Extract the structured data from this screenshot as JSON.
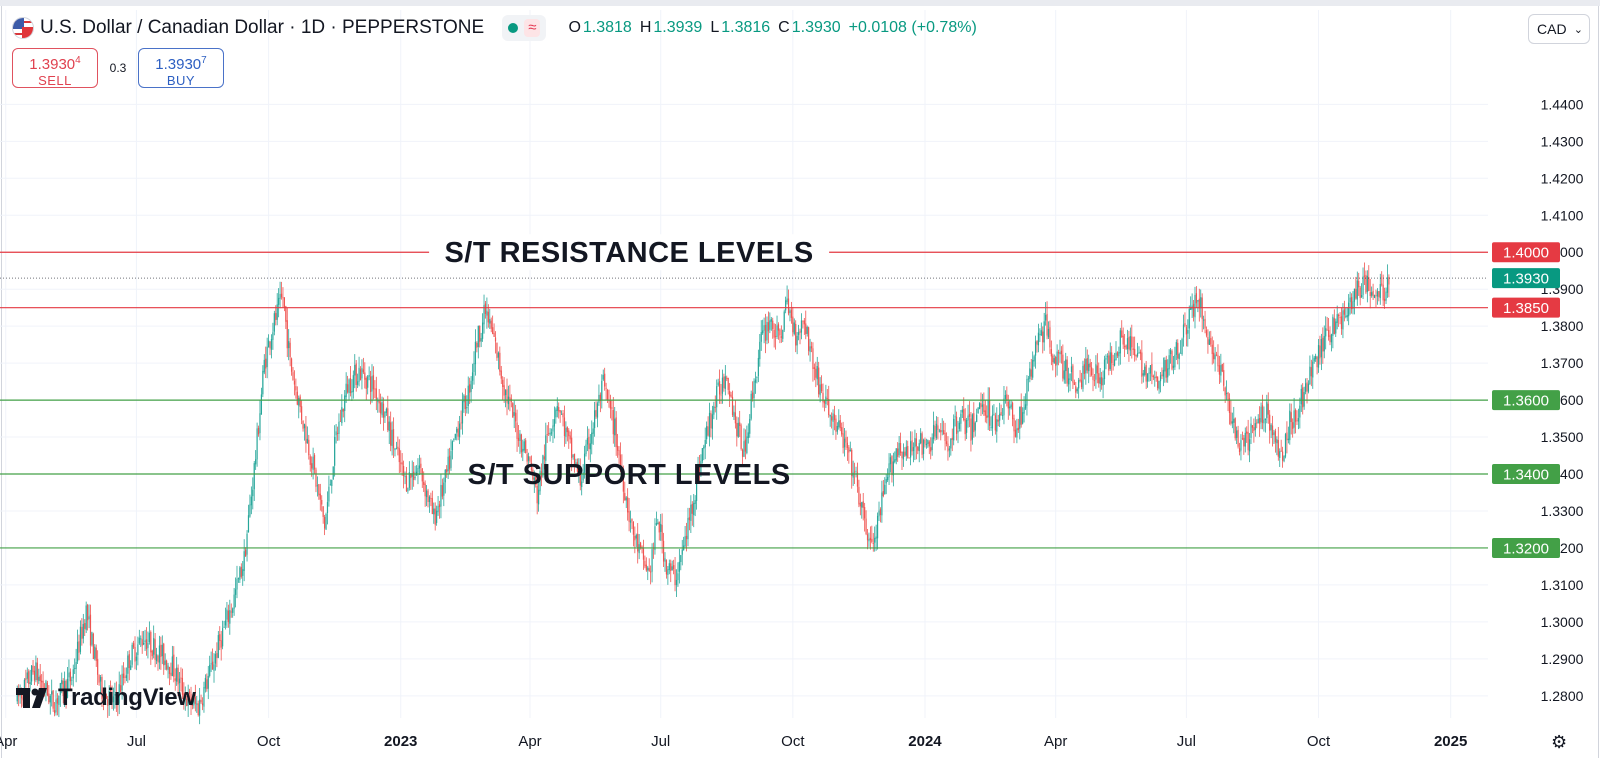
{
  "header": {
    "symbol_title": "U.S. Dollar / Canadian Dollar · 1D · PEPPERSTONE",
    "status_wave": "≈",
    "ohlc": [
      {
        "key": "O",
        "value": "1.3818"
      },
      {
        "key": "H",
        "value": "1.3939"
      },
      {
        "key": "L",
        "value": "1.3816"
      },
      {
        "key": "C",
        "value": "1.3930"
      }
    ],
    "change": "+0.0108 (+0.78%)",
    "icons": {
      "flag": "usd-cad-flag-icon",
      "status": "market-open-dot-icon"
    }
  },
  "trade": {
    "sell_price_main": "1.3930",
    "sell_price_tail": "4",
    "sell_label": "SELL",
    "spread": "0.3",
    "buy_price_main": "1.3930",
    "buy_price_tail": "7",
    "buy_label": "BUY"
  },
  "currency": {
    "value": "CAD",
    "chevron": "⌄"
  },
  "branding": {
    "name": "TradingView"
  },
  "settings_icon": "⚙",
  "colors": {
    "up": "#26a69a",
    "down": "#ef5350",
    "resistance": "#e53a43",
    "support": "#43a047",
    "last_price": "#089981"
  },
  "chart_data": {
    "type": "candlestick",
    "title": "U.S. Dollar / Canadian Dollar · 1D · PEPPERSTONE",
    "ylim": [
      1.274,
      1.452
    ],
    "y_ticks": [
      "1.4400",
      "1.4300",
      "1.4200",
      "1.4100",
      "1.4000",
      "1.3900",
      "1.3800",
      "1.3700",
      "1.3600",
      "1.3500",
      "1.3400",
      "1.3300",
      "1.3200",
      "1.3100",
      "1.3000",
      "1.2900",
      "1.2800"
    ],
    "x_ticks": [
      {
        "label": "Apr",
        "bold": false,
        "day": -8
      },
      {
        "label": "Jul",
        "bold": false,
        "day": 83
      },
      {
        "label": "Oct",
        "bold": false,
        "day": 175
      },
      {
        "label": "2023",
        "bold": true,
        "day": 267
      },
      {
        "label": "Apr",
        "bold": false,
        "day": 357
      },
      {
        "label": "Jul",
        "bold": false,
        "day": 448
      },
      {
        "label": "Oct",
        "bold": false,
        "day": 540
      },
      {
        "label": "2024",
        "bold": true,
        "day": 632
      },
      {
        "label": "Apr",
        "bold": false,
        "day": 723
      },
      {
        "label": "Jul",
        "bold": false,
        "day": 814
      },
      {
        "label": "Oct",
        "bold": false,
        "day": 906
      },
      {
        "label": "2025",
        "bold": true,
        "day": 998
      }
    ],
    "last_day": 955,
    "levels": [
      {
        "name": "resistance",
        "value": 1.4,
        "label": "1.4000",
        "kind": "resistance"
      },
      {
        "name": "resistance",
        "value": 1.385,
        "label": "1.3850",
        "kind": "resistance"
      },
      {
        "name": "last-price",
        "value": 1.393,
        "label": "1.3930",
        "kind": "last"
      },
      {
        "name": "support",
        "value": 1.36,
        "label": "1.3600",
        "kind": "support"
      },
      {
        "name": "support",
        "value": 1.34,
        "label": "1.3400",
        "kind": "support"
      },
      {
        "name": "support",
        "value": 1.32,
        "label": "1.3200",
        "kind": "support"
      }
    ],
    "annotations": [
      {
        "text": "S/T RESISTANCE LEVELS",
        "price": 1.4,
        "day": 426
      },
      {
        "text": "S/T SUPPORT LEVELS",
        "price": 1.34,
        "day": 426
      }
    ],
    "path_points": [
      [
        0,
        1.279
      ],
      [
        12,
        1.287
      ],
      [
        25,
        1.278
      ],
      [
        38,
        1.285
      ],
      [
        48,
        1.303
      ],
      [
        58,
        1.282
      ],
      [
        68,
        1.278
      ],
      [
        78,
        1.29
      ],
      [
        88,
        1.296
      ],
      [
        98,
        1.292
      ],
      [
        108,
        1.288
      ],
      [
        118,
        1.279
      ],
      [
        126,
        1.277
      ],
      [
        134,
        1.286
      ],
      [
        142,
        1.296
      ],
      [
        150,
        1.305
      ],
      [
        158,
        1.317
      ],
      [
        166,
        1.345
      ],
      [
        172,
        1.37
      ],
      [
        178,
        1.38
      ],
      [
        185,
        1.388
      ],
      [
        190,
        1.37
      ],
      [
        198,
        1.356
      ],
      [
        206,
        1.342
      ],
      [
        214,
        1.326
      ],
      [
        222,
        1.35
      ],
      [
        230,
        1.364
      ],
      [
        238,
        1.368
      ],
      [
        248,
        1.364
      ],
      [
        256,
        1.356
      ],
      [
        262,
        1.348
      ],
      [
        270,
        1.338
      ],
      [
        280,
        1.342
      ],
      [
        290,
        1.328
      ],
      [
        298,
        1.338
      ],
      [
        306,
        1.352
      ],
      [
        314,
        1.362
      ],
      [
        320,
        1.376
      ],
      [
        326,
        1.384
      ],
      [
        332,
        1.376
      ],
      [
        340,
        1.362
      ],
      [
        348,
        1.352
      ],
      [
        356,
        1.344
      ],
      [
        362,
        1.334
      ],
      [
        368,
        1.348
      ],
      [
        376,
        1.36
      ],
      [
        384,
        1.348
      ],
      [
        392,
        1.338
      ],
      [
        400,
        1.352
      ],
      [
        408,
        1.364
      ],
      [
        416,
        1.352
      ],
      [
        422,
        1.338
      ],
      [
        428,
        1.325
      ],
      [
        434,
        1.318
      ],
      [
        440,
        1.313
      ],
      [
        446,
        1.328
      ],
      [
        452,
        1.315
      ],
      [
        458,
        1.312
      ],
      [
        464,
        1.32
      ],
      [
        470,
        1.332
      ],
      [
        476,
        1.344
      ],
      [
        482,
        1.354
      ],
      [
        488,
        1.362
      ],
      [
        494,
        1.368
      ],
      [
        500,
        1.354
      ],
      [
        506,
        1.346
      ],
      [
        512,
        1.362
      ],
      [
        518,
        1.376
      ],
      [
        524,
        1.382
      ],
      [
        530,
        1.376
      ],
      [
        536,
        1.386
      ],
      [
        542,
        1.378
      ],
      [
        548,
        1.382
      ],
      [
        554,
        1.37
      ],
      [
        560,
        1.362
      ],
      [
        566,
        1.356
      ],
      [
        572,
        1.352
      ],
      [
        578,
        1.346
      ],
      [
        584,
        1.338
      ],
      [
        590,
        1.326
      ],
      [
        596,
        1.32
      ],
      [
        602,
        1.332
      ],
      [
        608,
        1.342
      ],
      [
        614,
        1.348
      ],
      [
        620,
        1.344
      ],
      [
        626,
        1.35
      ],
      [
        632,
        1.346
      ],
      [
        640,
        1.352
      ],
      [
        648,
        1.348
      ],
      [
        656,
        1.356
      ],
      [
        664,
        1.352
      ],
      [
        672,
        1.36
      ],
      [
        680,
        1.354
      ],
      [
        688,
        1.36
      ],
      [
        696,
        1.352
      ],
      [
        704,
        1.364
      ],
      [
        710,
        1.376
      ],
      [
        716,
        1.38
      ],
      [
        722,
        1.372
      ],
      [
        730,
        1.368
      ],
      [
        738,
        1.364
      ],
      [
        746,
        1.37
      ],
      [
        754,
        1.366
      ],
      [
        762,
        1.372
      ],
      [
        770,
        1.378
      ],
      [
        778,
        1.372
      ],
      [
        786,
        1.368
      ],
      [
        794,
        1.364
      ],
      [
        802,
        1.37
      ],
      [
        810,
        1.376
      ],
      [
        816,
        1.382
      ],
      [
        822,
        1.388
      ],
      [
        828,
        1.378
      ],
      [
        834,
        1.372
      ],
      [
        840,
        1.364
      ],
      [
        846,
        1.354
      ],
      [
        852,
        1.346
      ],
      [
        858,
        1.35
      ],
      [
        864,
        1.354
      ],
      [
        870,
        1.358
      ],
      [
        876,
        1.348
      ],
      [
        880,
        1.344
      ],
      [
        886,
        1.354
      ],
      [
        892,
        1.358
      ],
      [
        898,
        1.364
      ],
      [
        904,
        1.37
      ],
      [
        910,
        1.376
      ],
      [
        916,
        1.38
      ],
      [
        922,
        1.382
      ],
      [
        928,
        1.386
      ],
      [
        934,
        1.39
      ],
      [
        940,
        1.392
      ],
      [
        946,
        1.387
      ],
      [
        952,
        1.39
      ],
      [
        955,
        1.393
      ]
    ],
    "volatility": 0.0065
  }
}
